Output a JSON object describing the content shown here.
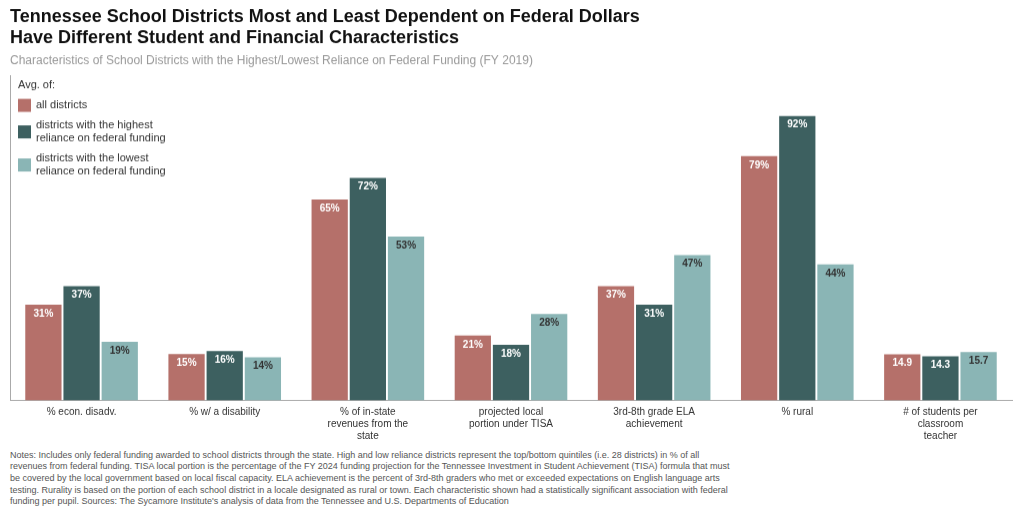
{
  "chart_data": {
    "type": "bar",
    "title": "Tennessee School Districts Most and Least Dependent on Federal Dollars\nHave Different Student and Financial Characteristics",
    "subtitle": "Characteristics of School Districts with the Highest/Lowest Reliance on Federal Funding (FY 2019)",
    "categories": [
      "% econ. disadv.",
      "% w/ a disability",
      "% of in-state\nrevenues from the\nstate",
      "projected local\nportion under TISA",
      "3rd-8th grade ELA\nachievement",
      "% rural",
      "# of students per\nclassroom\nteacher"
    ],
    "series": [
      {
        "name": "all districts",
        "color": "#b5706a",
        "values": [
          31,
          15,
          65,
          21,
          37,
          79,
          14.9
        ],
        "value_labels": [
          "31%",
          "15%",
          "65%",
          "21%",
          "37%",
          "79%",
          "14.9"
        ]
      },
      {
        "name": "districts with the highest\nreliance on federal funding",
        "color": "#3d6060",
        "values": [
          37,
          16,
          72,
          18,
          31,
          92,
          14.3
        ],
        "value_labels": [
          "37%",
          "16%",
          "72%",
          "18%",
          "31%",
          "92%",
          "14.3"
        ]
      },
      {
        "name": "districts with the lowest\nreliance on federal funding",
        "color": "#8ab5b5",
        "values": [
          19,
          14,
          53,
          28,
          47,
          44,
          15.7
        ],
        "value_labels": [
          "19%",
          "14%",
          "53%",
          "28%",
          "47%",
          "44%",
          "15.7"
        ]
      }
    ],
    "legend_title": "Avg. of:",
    "legend": "upper left",
    "annotations": [
      "Notes: Includes only federal funding awarded to school districts through the state. High and low reliance districts represent the top/bottom quintiles (i.e. 28 districts) in % of all\nrevenues from federal funding. TISA local portion is the percentage of the FY 2024 funding projection for the Tennessee Investment in Student Achievement (TISA) formula that must\nbe covered by the local government based on local fiscal capacity. ELA achievement is the percent of 3rd-8th graders who met or exceeded expectations on English language arts\ntesting. Rurality is based on the portion of each school district in a locale designated as rural or town. Each characteristic shown had a statistically significant association with federal\nfunding per pupil. Sources: The Sycamore Institute's analysis of data from the Tennessee and U.S. Departments of Education"
    ],
    "ylim": [
      0,
      105
    ],
    "grid": false,
    "data_labels": true,
    "tick_labels": "x"
  }
}
